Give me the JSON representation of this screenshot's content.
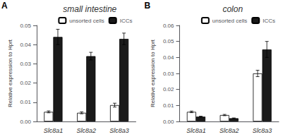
{
  "chart_data": [
    {
      "type": "bar",
      "title": "small intestine",
      "annotation": "A",
      "categories": [
        "Slc8a1",
        "Slc8a2",
        "Slc8a3"
      ],
      "series": [
        {
          "name": "unsorted cells",
          "color": "#ffffff",
          "values": [
            0.005,
            0.0045,
            0.0085
          ],
          "errors": [
            0.0005,
            0.0005,
            0.001
          ]
        },
        {
          "name": "ICCs",
          "color": "#1a1a1a",
          "values": [
            0.044,
            0.034,
            0.043
          ],
          "errors": [
            0.004,
            0.002,
            0.003
          ]
        }
      ],
      "ylabel": "Relative expression to Hprt",
      "ylim": [
        0,
        0.05
      ],
      "yticks": [
        {
          "value": 0,
          "label": "0.00"
        },
        0.01,
        0.02,
        0.03,
        0.04,
        0.05
      ],
      "legend": "upper right",
      "grid": false
    },
    {
      "type": "bar",
      "title": "colon",
      "annotation": "B",
      "categories": [
        "Slc8a1",
        "Slc8a2",
        "Slc8a3"
      ],
      "series": [
        {
          "name": "unsorted cells",
          "color": "#ffffff",
          "values": [
            0.006,
            0.004,
            0.03
          ],
          "errors": [
            0.0005,
            0.0004,
            0.002
          ]
        },
        {
          "name": "ICCs",
          "color": "#1a1a1a",
          "values": [
            0.003,
            0.002,
            0.045
          ],
          "errors": [
            0.0003,
            0.0002,
            0.005
          ]
        }
      ],
      "ylabel": "Relative expression to Hprt",
      "ylim": [
        0,
        0.06
      ],
      "yticks": [
        {
          "value": 0,
          "label": "0.00"
        },
        0.01,
        0.02,
        0.03,
        0.04,
        0.05,
        0.06
      ],
      "legend": "upper right",
      "grid": false
    }
  ]
}
